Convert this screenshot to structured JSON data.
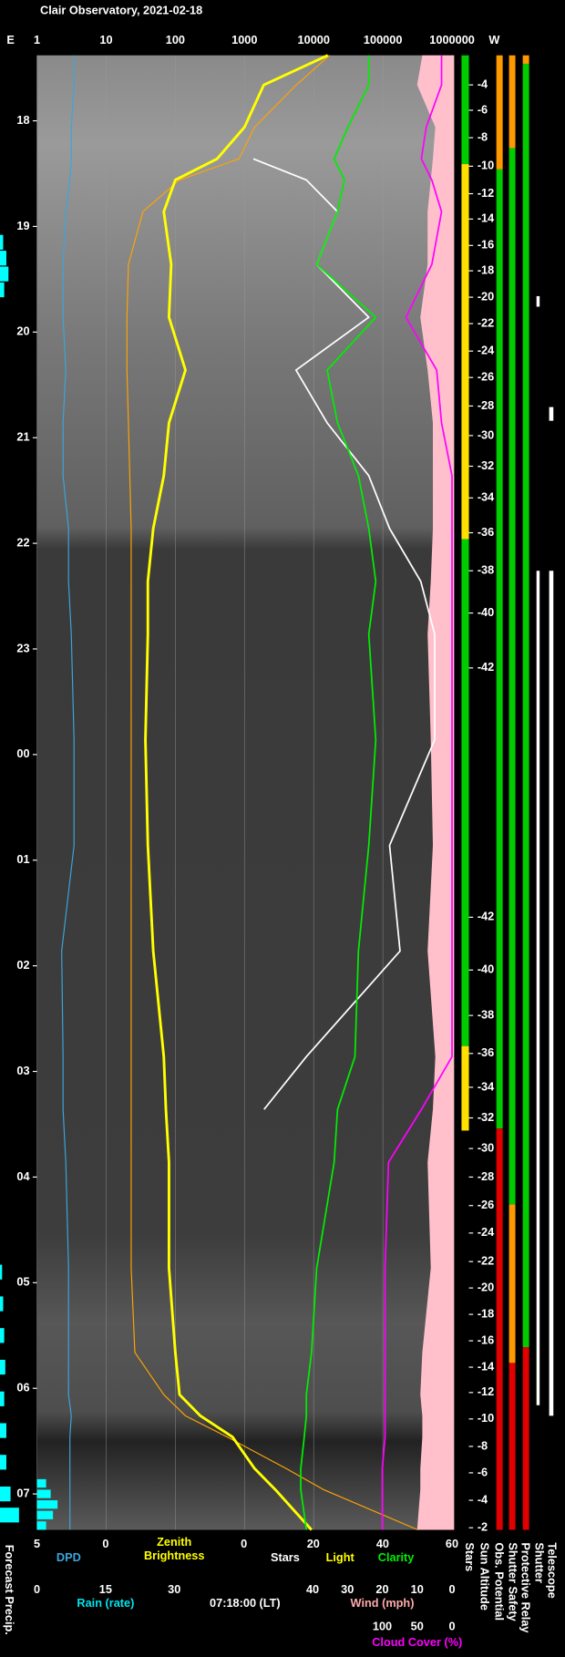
{
  "title": "Clair Observatory, 2021-02-18",
  "chart_data": {
    "type": "line",
    "east": "E",
    "west": "W",
    "xscale": "log",
    "xlim": [
      1,
      1070000
    ],
    "xticks": [
      1,
      10,
      100,
      1000,
      10000,
      100000,
      1000000
    ],
    "grid": true,
    "ylim": [
      17.38,
      31.34
    ],
    "yticks": [
      18,
      19,
      20,
      21,
      22,
      23,
      {
        "value": 24,
        "label": "00"
      },
      {
        "value": 25,
        "label": "01"
      },
      {
        "value": 26,
        "label": "02"
      },
      {
        "value": 27,
        "label": "03"
      },
      {
        "value": 28,
        "label": "04"
      },
      {
        "value": 29,
        "label": "05"
      },
      {
        "value": 30,
        "label": "06"
      },
      {
        "value": 31,
        "label": "07"
      }
    ],
    "time_label": "07:18:00 (LT)",
    "times": [
      17.38,
      17.66,
      18.06,
      18.36,
      18.56,
      18.86,
      19.36,
      19.86,
      20.36,
      20.86,
      21.36,
      21.86,
      22.36,
      22.86,
      23.86,
      24.86,
      25.86,
      26.86,
      27.36,
      27.86,
      28.86,
      29.66,
      30.06,
      30.26,
      30.46,
      30.76,
      30.96,
      31.34
    ],
    "axes": {
      "dpd": {
        "lim": [
          5,
          0
        ],
        "ticks": [
          5,
          0
        ],
        "label": "DPD",
        "color": "#3aa6dd"
      },
      "zenith": {
        "label_lines": [
          "Zenith",
          "Brightness"
        ],
        "color": "#ffff00"
      },
      "stars": {
        "lim": [
          0,
          60
        ],
        "ticks": [
          0,
          20,
          40,
          60
        ],
        "labels": [
          {
            "text": "Stars",
            "color": "#ffffff"
          },
          {
            "text": "Light",
            "color": "#ffff00"
          },
          {
            "text": "Clarity",
            "color": "#00ee00"
          }
        ]
      },
      "rain": {
        "lim": [
          0,
          30
        ],
        "ticks": [
          0,
          15,
          30
        ],
        "label": "Rain (rate)",
        "color": "#00e5ee"
      },
      "wind": {
        "lim": [
          40,
          0
        ],
        "ticks": [
          40,
          30,
          20,
          10,
          0
        ],
        "label": "Wind (mph)",
        "color": "#ffaaaa"
      },
      "cloud": {
        "lim": [
          100,
          0
        ],
        "ticks": [
          100,
          50,
          0
        ],
        "label": "Cloud Cover (%)",
        "color": "#ff00ff"
      }
    },
    "series": [
      {
        "axis": "wind",
        "type": "area",
        "color": "#ffc0cb",
        "values": [
          8.5,
          10,
          4.8,
          5.5,
          6.1,
          7,
          7,
          9.1,
          7,
          5.5,
          5.5,
          5.5,
          6.1,
          7,
          6.1,
          5.5,
          7,
          4.8,
          5.5,
          7,
          6.1,
          8.5,
          9.1,
          8.5,
          8.5,
          9.1,
          9.1,
          10
        ]
      },
      {
        "axis": "top",
        "type": "line",
        "color": "#ffa500",
        "values": [
          17000,
          5600,
          1400,
          830,
          115,
          34,
          21,
          20,
          20,
          21,
          22,
          23,
          23,
          23,
          23,
          23,
          23,
          23,
          23,
          23,
          23,
          26,
          68,
          140,
          560,
          4000,
          14000,
          320000
        ]
      },
      {
        "axis": "top",
        "type": "line",
        "color": "#ffff00",
        "values": [
          16000,
          1900,
          1000,
          400,
          100,
          68,
          87,
          81,
          140,
          81,
          68,
          48,
          40,
          40,
          37,
          40,
          48,
          68,
          73,
          81,
          81,
          100,
          115,
          230,
          670,
          1400,
          2800,
          9300
        ]
      },
      {
        "axis": "stars",
        "type": "line",
        "color": "#ffffff",
        "values": [
          null,
          null,
          null,
          2.7,
          18,
          27,
          21,
          36,
          15,
          24,
          36,
          42,
          51,
          55,
          55,
          42,
          45,
          18,
          5.8,
          null,
          null,
          null,
          null,
          null,
          null,
          null,
          null,
          null
        ]
      },
      {
        "axis": "stars",
        "type": "line",
        "color": "#00ee00",
        "values": [
          36,
          36,
          30,
          26,
          29,
          27,
          21,
          38,
          24,
          27,
          33,
          36,
          38,
          36,
          38,
          36,
          33,
          32,
          27,
          26,
          21,
          19.5,
          18,
          18,
          17.4,
          16.4,
          16.4,
          18
        ]
      },
      {
        "axis": "cloud",
        "type": "line",
        "color": "#ff00ff",
        "values": [
          15,
          15,
          37,
          44,
          29,
          15,
          29,
          66,
          22,
          15,
          0,
          0,
          0,
          0,
          0,
          0,
          0,
          0,
          44,
          91,
          96,
          96,
          96,
          96,
          96,
          100,
          100,
          100
        ]
      },
      {
        "axis": "dpd",
        "type": "line",
        "color": "#3aa6dd",
        "values": [
          2.3,
          2.3,
          2.5,
          2.5,
          2.6,
          2.9,
          3.1,
          3.1,
          2.9,
          3.1,
          3.1,
          2.7,
          2.7,
          2.5,
          2.3,
          2.3,
          3.2,
          3.1,
          3.1,
          2.9,
          2.7,
          2.7,
          2.7,
          2.5,
          2.6,
          2.6,
          2.6,
          2.6
        ]
      }
    ],
    "rain": {
      "axis": "rain",
      "color": "#00ffff",
      "x": [
        30.9,
        31.0,
        31.1,
        31.2,
        31.3
      ],
      "values": [
        2,
        3,
        4.5,
        3.5,
        2
      ]
    },
    "forecast_precip": {
      "label": "Forecast Precip.",
      "color": "#00ffff",
      "x": [
        19.15,
        19.3,
        19.45,
        19.6,
        28.9,
        29.2,
        29.5,
        29.8,
        30.1,
        30.4,
        30.7,
        31.0,
        31.2
      ],
      "values": [
        1.5,
        3,
        4,
        2,
        1,
        1.5,
        2,
        2.5,
        2,
        3,
        3,
        5,
        9
      ]
    },
    "sun_altitude": {
      "label": "Sun Altitude",
      "ticks": [
        {
          "time": 17.66,
          "altitude": -4
        },
        {
          "time": 17.9,
          "altitude": -6
        },
        {
          "time": 18.16,
          "altitude": -8
        },
        {
          "time": 18.43,
          "altitude": -10
        },
        {
          "time": 18.69,
          "altitude": -12
        },
        {
          "time": 18.93,
          "altitude": -14
        },
        {
          "time": 19.18,
          "altitude": -16
        },
        {
          "time": 19.42,
          "altitude": -18
        },
        {
          "time": 19.67,
          "altitude": -20
        },
        {
          "time": 19.92,
          "altitude": -22
        },
        {
          "time": 20.18,
          "altitude": -24
        },
        {
          "time": 20.43,
          "altitude": -26
        },
        {
          "time": 20.7,
          "altitude": -28
        },
        {
          "time": 20.98,
          "altitude": -30
        },
        {
          "time": 21.27,
          "altitude": -32
        },
        {
          "time": 21.57,
          "altitude": -34
        },
        {
          "time": 21.9,
          "altitude": -36
        },
        {
          "time": 22.26,
          "altitude": -38
        },
        {
          "time": 22.66,
          "altitude": -40
        },
        {
          "time": 23.18,
          "altitude": -42
        },
        {
          "time": 25.54,
          "altitude": -42
        },
        {
          "time": 26.04,
          "altitude": -40
        },
        {
          "time": 26.47,
          "altitude": -38
        },
        {
          "time": 26.83,
          "altitude": -36
        },
        {
          "time": 27.15,
          "altitude": -34
        },
        {
          "time": 27.44,
          "altitude": -32
        },
        {
          "time": 27.73,
          "altitude": -30
        },
        {
          "time": 28.0,
          "altitude": -28
        },
        {
          "time": 28.27,
          "altitude": -26
        },
        {
          "time": 28.53,
          "altitude": -24
        },
        {
          "time": 28.8,
          "altitude": -22
        },
        {
          "time": 29.05,
          "altitude": -20
        },
        {
          "time": 29.3,
          "altitude": -18
        },
        {
          "time": 29.55,
          "altitude": -16
        },
        {
          "time": 29.8,
          "altitude": -14
        },
        {
          "time": 30.04,
          "altitude": -12
        },
        {
          "time": 30.29,
          "altitude": -10
        },
        {
          "time": 30.55,
          "altitude": -8
        },
        {
          "time": 30.8,
          "altitude": -6
        },
        {
          "time": 31.06,
          "altitude": -4
        },
        {
          "time": 31.32,
          "altitude": -2
        }
      ]
    },
    "status": [
      {
        "label": "Stars",
        "segments": [
          {
            "from": 17.38,
            "to": 18.41,
            "color": "#00cc00"
          },
          {
            "from": 18.41,
            "to": 21.96,
            "color": "#ffe000"
          },
          {
            "from": 21.96,
            "to": 26.76,
            "color": "#00cc00"
          },
          {
            "from": 26.76,
            "to": 27.56,
            "color": "#ffe000"
          }
        ]
      },
      {
        "label": "Obs. Potential",
        "segments": [
          {
            "from": 17.38,
            "to": 18.46,
            "color": "#ff9900"
          },
          {
            "from": 18.46,
            "to": 27.54,
            "color": "#00cc00"
          },
          {
            "from": 27.54,
            "to": 31.34,
            "color": "#e00000"
          }
        ]
      },
      {
        "label": "Shutter Safety",
        "segments": [
          {
            "from": 17.38,
            "to": 18.26,
            "color": "#ff9900"
          },
          {
            "from": 18.26,
            "to": 28.26,
            "color": "#00cc00"
          },
          {
            "from": 28.26,
            "to": 29.76,
            "color": "#ff9900"
          },
          {
            "from": 29.76,
            "to": 31.34,
            "color": "#e00000"
          }
        ]
      },
      {
        "label": "Protective Relay",
        "segments": [
          {
            "from": 17.38,
            "to": 17.46,
            "color": "#ff9900"
          },
          {
            "from": 17.46,
            "to": 29.61,
            "color": "#00cc00"
          },
          {
            "from": 29.61,
            "to": 31.34,
            "color": "#e00000"
          }
        ]
      },
      {
        "label": "Shutter",
        "segments": [
          {
            "from": 19.66,
            "to": 19.76,
            "color": "#ffffff"
          },
          {
            "from": 22.26,
            "to": 30.16,
            "color": "#ffffff"
          }
        ]
      },
      {
        "label": "Telescope",
        "segments": [
          {
            "from": 20.71,
            "to": 20.84,
            "color": "#ffffff"
          },
          {
            "from": 22.26,
            "to": 30.26,
            "color": "#ffffff"
          }
        ]
      }
    ]
  }
}
